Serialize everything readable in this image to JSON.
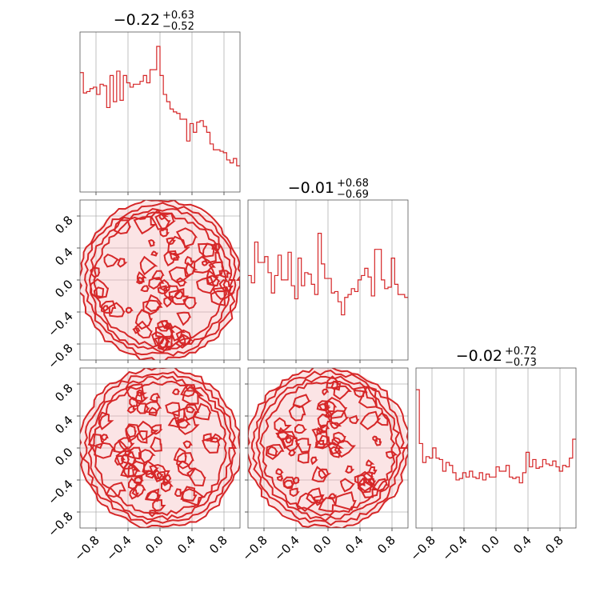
{
  "chart_data": {
    "type": "corner",
    "color": "#d62728",
    "fill_color": "#f4b3b5",
    "tick_values": [
      -0.8,
      -0.4,
      0.0,
      0.4,
      0.8
    ],
    "tick_labels": [
      "−0.8",
      "−0.4",
      "0.0",
      "0.4",
      "0.8"
    ],
    "range": [
      -1,
      1
    ],
    "histograms": [
      {
        "title": {
          "median": "−0.22",
          "plus": "+0.63",
          "minus": "−0.52"
        },
        "values": [
          0.82,
          0.68,
          0.69,
          0.71,
          0.72,
          0.67,
          0.74,
          0.73,
          0.58,
          0.8,
          0.62,
          0.83,
          0.63,
          0.8,
          0.75,
          0.72,
          0.74,
          0.74,
          0.76,
          0.8,
          0.75,
          0.84,
          0.84,
          1.0,
          0.8,
          0.67,
          0.62,
          0.57,
          0.55,
          0.54,
          0.5,
          0.5,
          0.35,
          0.47,
          0.41,
          0.48,
          0.49,
          0.45,
          0.41,
          0.33,
          0.29,
          0.29,
          0.28,
          0.27,
          0.22,
          0.2,
          0.23,
          0.18
        ]
      },
      {
        "title": {
          "median": "−0.01",
          "plus": "+0.68",
          "minus": "−0.69"
        },
        "values": [
          0.58,
          0.53,
          0.81,
          0.67,
          0.67,
          0.71,
          0.6,
          0.46,
          0.58,
          0.72,
          0.55,
          0.55,
          0.74,
          0.51,
          0.42,
          0.7,
          0.51,
          0.6,
          0.59,
          0.52,
          0.45,
          0.87,
          0.66,
          0.56,
          0.56,
          0.46,
          0.47,
          0.4,
          0.31,
          0.43,
          0.45,
          0.49,
          0.47,
          0.55,
          0.58,
          0.63,
          0.57,
          0.44,
          0.76,
          0.76,
          0.55,
          0.49,
          0.5,
          0.7,
          0.52,
          0.45,
          0.45,
          0.43
        ]
      },
      {
        "title": {
          "median": "−0.02",
          "plus": "+0.72",
          "minus": "−0.73"
        },
        "values": [
          0.95,
          0.58,
          0.45,
          0.49,
          0.48,
          0.55,
          0.48,
          0.47,
          0.39,
          0.45,
          0.43,
          0.38,
          0.33,
          0.34,
          0.38,
          0.35,
          0.39,
          0.35,
          0.34,
          0.38,
          0.33,
          0.37,
          0.35,
          0.35,
          0.42,
          0.39,
          0.39,
          0.43,
          0.35,
          0.34,
          0.35,
          0.31,
          0.38,
          0.52,
          0.42,
          0.47,
          0.41,
          0.42,
          0.47,
          0.44,
          0.43,
          0.46,
          0.42,
          0.39,
          0.43,
          0.42,
          0.48,
          0.61
        ]
      }
    ],
    "contours_2d": [
      {
        "pair": [
          0,
          1
        ],
        "shape": "disk",
        "radius": 1.0
      },
      {
        "pair": [
          0,
          2
        ],
        "shape": "disk",
        "radius": 1.0
      },
      {
        "pair": [
          1,
          2
        ],
        "shape": "disk",
        "radius": 1.0
      }
    ]
  }
}
